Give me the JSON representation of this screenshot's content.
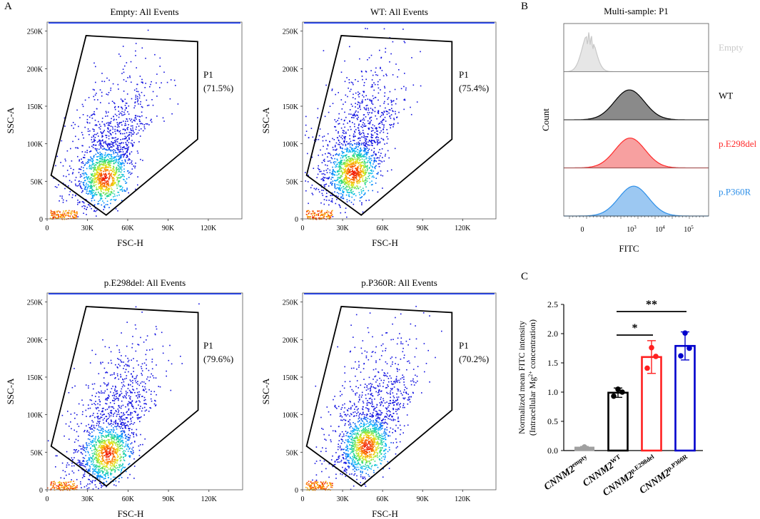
{
  "panel_labels": {
    "a": "A",
    "b": "B",
    "c": "C"
  },
  "p1_label": "P1",
  "chart_data": [
    {
      "type": "scatter",
      "title": "Empty: All Events",
      "xlabel": "FSC-H",
      "ylabel": "SSC-A",
      "xticks": [
        "0",
        "30K",
        "60K",
        "90K",
        "120K"
      ],
      "yticks": [
        "0",
        "50K",
        "100K",
        "150K",
        "200K",
        "250K"
      ],
      "xlim": [
        0,
        145000
      ],
      "ylim": [
        0,
        262000
      ],
      "gate_label": "P1",
      "gate_pct": "(71.5%)",
      "gate_polygon": [
        [
          3000,
          58000
        ],
        [
          29000,
          244000
        ],
        [
          112000,
          236000
        ],
        [
          112000,
          106000
        ],
        [
          44000,
          5000
        ]
      ],
      "density_center": [
        43000,
        55000
      ]
    },
    {
      "type": "scatter",
      "title": "WT: All Events",
      "xlabel": "FSC-H",
      "ylabel": "SSC-A",
      "xticks": [
        "0",
        "30K",
        "60K",
        "90K",
        "120K"
      ],
      "yticks": [
        "0",
        "50K",
        "100K",
        "150K",
        "200K",
        "250K"
      ],
      "xlim": [
        0,
        145000
      ],
      "ylim": [
        0,
        262000
      ],
      "gate_label": "P1",
      "gate_pct": "(75.4%)",
      "gate_polygon": [
        [
          3000,
          58000
        ],
        [
          29000,
          244000
        ],
        [
          112000,
          236000
        ],
        [
          112000,
          106000
        ],
        [
          44000,
          5000
        ]
      ],
      "density_center": [
        38000,
        62000
      ]
    },
    {
      "type": "scatter",
      "title": "p.E298del: All Events",
      "xlabel": "FSC-H",
      "ylabel": "SSC-A",
      "xticks": [
        "0",
        "30K",
        "60K",
        "90K",
        "120K"
      ],
      "yticks": [
        "0",
        "50K",
        "100K",
        "150K",
        "200K",
        "250K"
      ],
      "xlim": [
        0,
        145000
      ],
      "ylim": [
        0,
        262000
      ],
      "gate_label": "P1",
      "gate_pct": "(79.6%)",
      "gate_polygon": [
        [
          3000,
          58000
        ],
        [
          29000,
          244000
        ],
        [
          112000,
          236000
        ],
        [
          112000,
          106000
        ],
        [
          44000,
          5000
        ]
      ],
      "density_center": [
        45000,
        48000
      ]
    },
    {
      "type": "scatter",
      "title": "p.P360R: All Events",
      "xlabel": "FSC-H",
      "ylabel": "SSC-A",
      "xticks": [
        "0",
        "30K",
        "60K",
        "90K",
        "120K"
      ],
      "yticks": [
        "0",
        "50K",
        "100K",
        "150K",
        "200K",
        "250K"
      ],
      "xlim": [
        0,
        145000
      ],
      "ylim": [
        0,
        262000
      ],
      "gate_label": "P1",
      "gate_pct": "(70.2%)",
      "gate_polygon": [
        [
          3000,
          58000
        ],
        [
          29000,
          244000
        ],
        [
          112000,
          236000
        ],
        [
          112000,
          106000
        ],
        [
          44000,
          5000
        ]
      ],
      "density_center": [
        48000,
        58000
      ]
    },
    {
      "type": "area",
      "title": "Multi-sample: P1",
      "xlabel": "FITC",
      "ylabel": "Count",
      "xticks": [
        "0",
        "10^3",
        "10^4",
        "10^5"
      ],
      "series": [
        {
          "name": "Empty",
          "color": "#c8c8c8",
          "fill": "#e6e6e6",
          "peak_fitc": 3
        },
        {
          "name": "WT",
          "color": "#000000",
          "fill": "#8a8a8a",
          "peak_fitc": 1000
        },
        {
          "name": "p.E298del",
          "color": "#ff2a2a",
          "fill": "#f7a0a0",
          "peak_fitc": 1100
        },
        {
          "name": "p.P360R",
          "color": "#2d8fe8",
          "fill": "#9cc8f2",
          "peak_fitc": 1500
        }
      ]
    },
    {
      "type": "bar",
      "title": "",
      "xlabel": "",
      "ylabel_line1": "Normalized mean FITC intensity",
      "ylabel_line2": "(Intracellular Mg",
      "ylabel_sup": "2+",
      "ylabel_line2_end": " concentration)",
      "ylim": [
        0,
        2.5
      ],
      "yticks": [
        "0.0",
        "0.5",
        "1.0",
        "1.5",
        "2.0",
        "2.5"
      ],
      "categories": [
        {
          "base": "CNNM2",
          "sup": "empty"
        },
        {
          "base": "CNNM2",
          "sup": "WT"
        },
        {
          "base": "CNNM2",
          "sup": "p.E298del"
        },
        {
          "base": "CNNM2",
          "sup": "p.P360R"
        }
      ],
      "values": [
        0.06,
        0.99,
        1.6,
        1.79
      ],
      "errors": [
        0.01,
        0.08,
        0.28,
        0.24
      ],
      "points": [
        [
          0.06,
          0.06,
          0.06
        ],
        [
          0.93,
          1.0,
          1.05
        ],
        [
          1.41,
          1.61,
          1.76
        ],
        [
          1.62,
          1.75,
          2.01
        ]
      ],
      "colors": [
        "#a0a0a0",
        "#000000",
        "#ff2020",
        "#0000cc"
      ],
      "significance": [
        {
          "from": 1,
          "to": 2,
          "label": "*"
        },
        {
          "from": 1,
          "to": 3,
          "label": "**"
        }
      ]
    }
  ]
}
